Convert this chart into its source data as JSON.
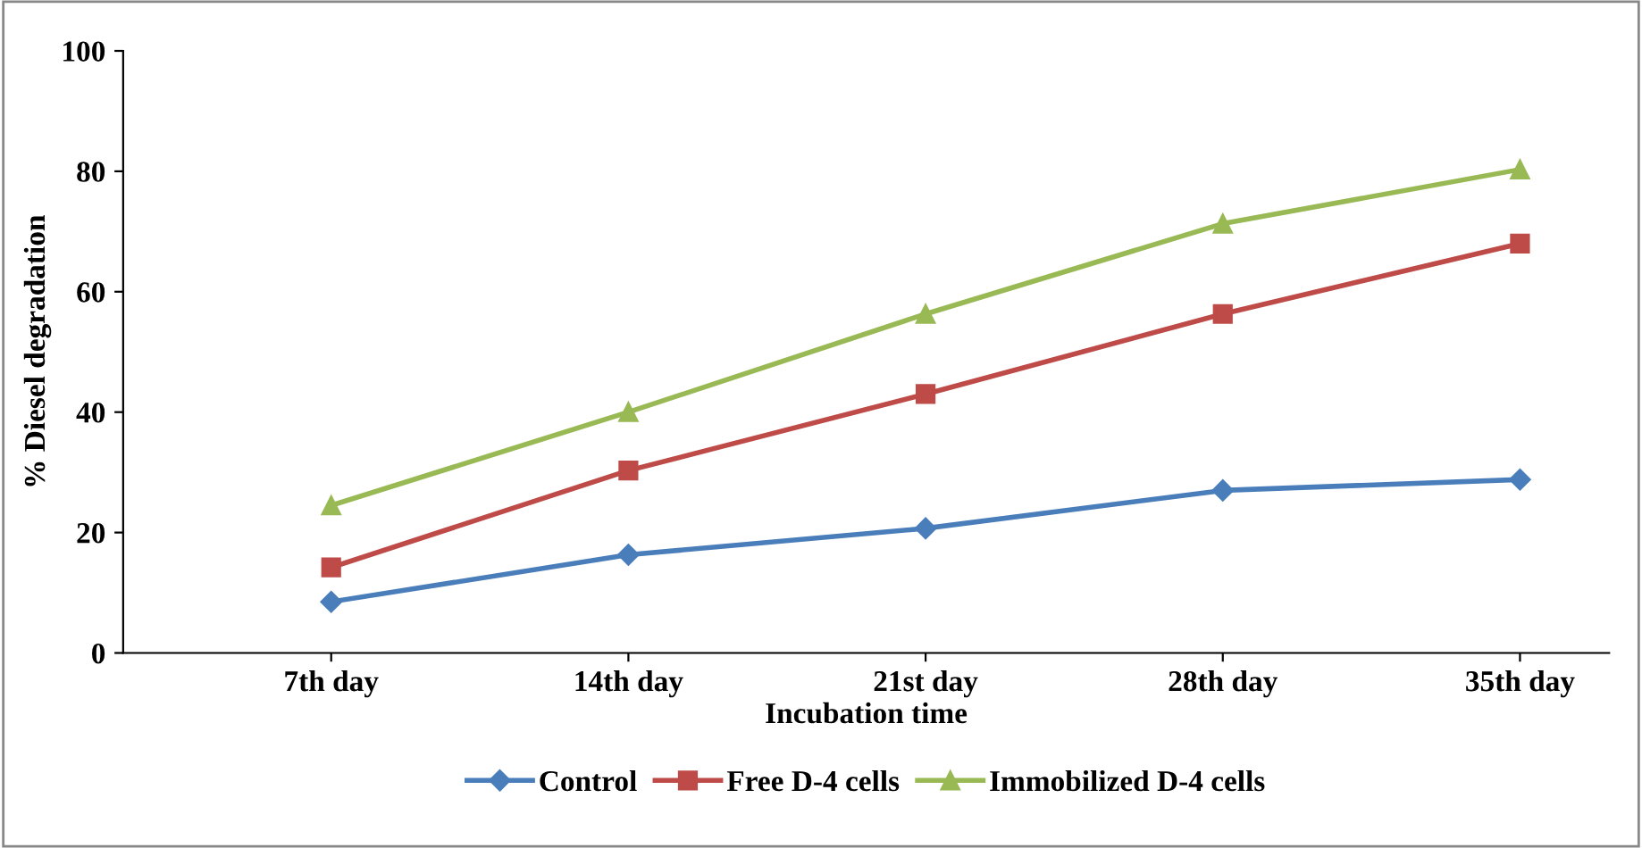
{
  "chart_data": {
    "type": "line",
    "xlabel": "Incubation time",
    "ylabel": "% Diesel degradation",
    "categories": [
      "7th day",
      "14th day",
      "21st day",
      "28th day",
      "35th day"
    ],
    "series": [
      {
        "name": "Control",
        "color": "#4a7ebb",
        "marker": "diamond",
        "values": [
          8.5,
          16.3,
          20.7,
          27,
          28.8
        ]
      },
      {
        "name": "Free D-4 cells",
        "color": "#be4b48",
        "marker": "square",
        "values": [
          14.2,
          30.3,
          43,
          56.3,
          68
        ]
      },
      {
        "name": "Immobilized D-4 cells",
        "color": "#98b954",
        "marker": "triangle",
        "values": [
          24.5,
          40,
          56.3,
          71.3,
          80.3
        ]
      }
    ],
    "ylim": [
      0,
      100
    ],
    "yticks": [
      0,
      20,
      40,
      60,
      80,
      100
    ],
    "grid": false,
    "legend": "bottom",
    "line_style": "solid"
  }
}
